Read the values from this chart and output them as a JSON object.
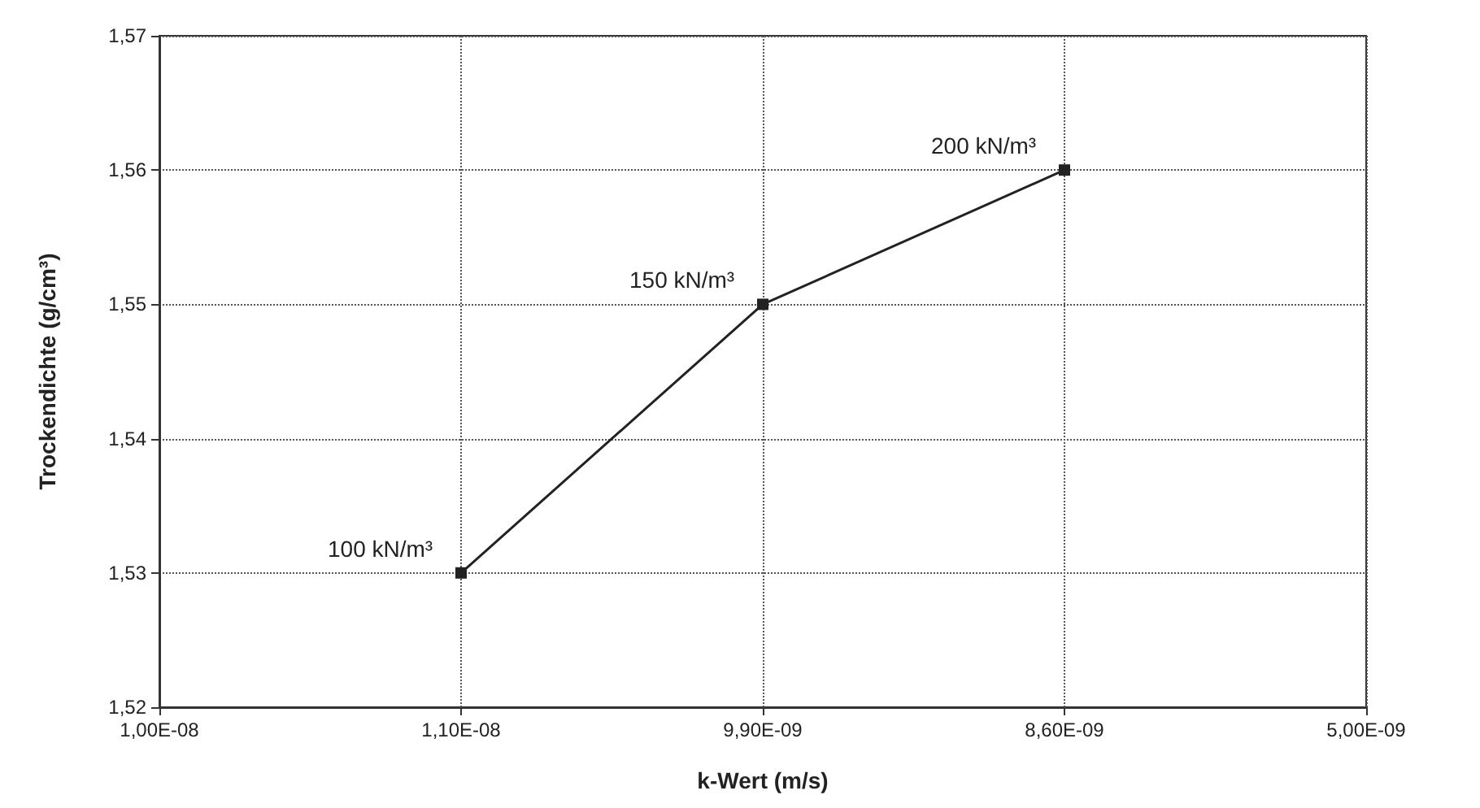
{
  "chart_data": {
    "type": "line",
    "xlabel": "k-Wert (m/s)",
    "ylabel": "Trockendichte (g/cm³)",
    "categories": [
      "1,00E-08",
      "1,10E-08",
      "9,90E-09",
      "8,60E-09",
      "5,00E-09"
    ],
    "series": [
      {
        "color": "#222222",
        "values": [
          null,
          1.53,
          1.55,
          1.56,
          null
        ]
      }
    ],
    "ylim": [
      1.52,
      1.57
    ],
    "yticks": [
      {
        "value": 1.52,
        "label": "1,52"
      },
      {
        "value": 1.53,
        "label": "1,53"
      },
      {
        "value": 1.54,
        "label": "1,54"
      },
      {
        "value": 1.55,
        "label": "1,55"
      },
      {
        "value": 1.56,
        "label": "1,56"
      },
      {
        "value": 1.57,
        "label": "1,57"
      }
    ],
    "annotations": [
      {
        "text": "100 kN/m³",
        "x": "1,10E-08",
        "y": 1.53
      },
      {
        "text": "150 kN/m³",
        "x": "9,90E-09",
        "y": 1.55
      },
      {
        "text": "200 kN/m³",
        "x": "8,60E-09",
        "y": 1.56
      }
    ],
    "grid": true,
    "marker": "square",
    "line_style": "solid"
  }
}
